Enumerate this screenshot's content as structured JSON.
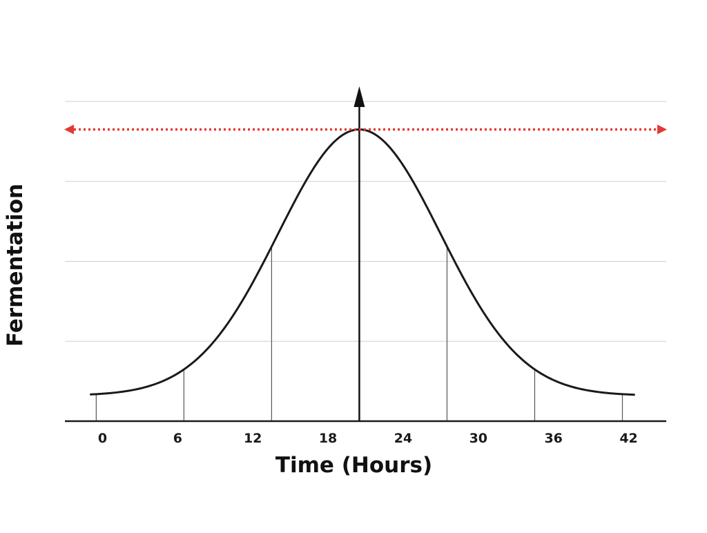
{
  "chart_data": {
    "type": "line",
    "xlabel": "Time (Hours)",
    "ylabel": "Fermentation",
    "x_ticks": [
      0,
      6,
      12,
      18,
      24,
      30,
      36,
      42
    ],
    "xlim": [
      -3,
      45
    ],
    "ylim": [
      0,
      4
    ],
    "grid": true,
    "gridlines_y": [
      1,
      2,
      3,
      4
    ],
    "curve": {
      "shape": "bell",
      "x_start": -1,
      "x_end": 42.5,
      "peak_x": 20.5,
      "peak_y": 3.65,
      "base_y": 0.32,
      "sigma": 6.5
    },
    "drop_lines_x": [
      -0.5,
      6.5,
      13.5,
      27.5,
      34.5,
      41.5
    ],
    "peak_marker_x": 20.5,
    "reference_line": {
      "y": 3.65,
      "color": "#e53935",
      "style": "dotted",
      "arrows": "both"
    },
    "colors": {
      "curve": "#1a1a1a",
      "grid": "#cfcfcf",
      "reference": "#e53935"
    }
  }
}
